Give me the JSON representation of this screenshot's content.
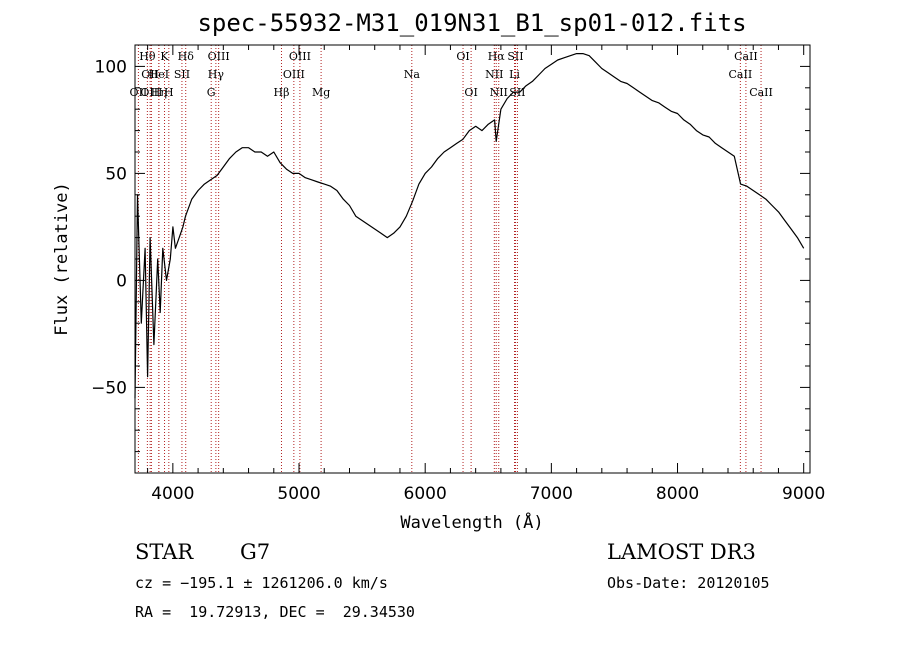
{
  "chart_data": {
    "type": "line",
    "title": "spec-55932-M31_019N31_B1_sp01-012.fits",
    "xlabel": "Wavelength (Å)",
    "ylabel": "Flux (relative)",
    "xlim": [
      3700,
      9050
    ],
    "ylim": [
      -90,
      110
    ],
    "xticks": [
      4000,
      5000,
      6000,
      7000,
      8000,
      9000
    ],
    "yticks": [
      -50,
      0,
      50,
      100
    ],
    "grid": false,
    "series": [
      {
        "name": "flux",
        "x": [
          3700,
          3720,
          3750,
          3780,
          3800,
          3820,
          3850,
          3880,
          3900,
          3920,
          3950,
          3980,
          4000,
          4020,
          4050,
          4080,
          4100,
          4150,
          4200,
          4250,
          4300,
          4350,
          4400,
          4450,
          4500,
          4550,
          4600,
          4650,
          4700,
          4750,
          4800,
          4850,
          4900,
          4950,
          5000,
          5050,
          5100,
          5150,
          5200,
          5250,
          5300,
          5350,
          5400,
          5450,
          5500,
          5550,
          5600,
          5650,
          5700,
          5750,
          5800,
          5850,
          5900,
          5950,
          6000,
          6050,
          6100,
          6150,
          6200,
          6250,
          6300,
          6350,
          6400,
          6450,
          6500,
          6550,
          6563,
          6600,
          6650,
          6700,
          6750,
          6800,
          6850,
          6900,
          6950,
          7000,
          7050,
          7100,
          7150,
          7200,
          7250,
          7300,
          7350,
          7400,
          7450,
          7500,
          7550,
          7600,
          7650,
          7700,
          7750,
          7800,
          7850,
          7900,
          7950,
          8000,
          8050,
          8100,
          8150,
          8200,
          8250,
          8300,
          8350,
          8400,
          8450,
          8500,
          8550,
          8600,
          8650,
          8700,
          8750,
          8800,
          8850,
          8900,
          8950,
          9000
        ],
        "y": [
          -55,
          40,
          -20,
          15,
          -45,
          20,
          -30,
          10,
          -15,
          15,
          0,
          10,
          25,
          15,
          20,
          25,
          30,
          38,
          42,
          45,
          47,
          49,
          53,
          57,
          60,
          62,
          62,
          60,
          60,
          58,
          60,
          55,
          52,
          50,
          50,
          48,
          47,
          46,
          45,
          44,
          42,
          38,
          35,
          30,
          28,
          26,
          24,
          22,
          20,
          22,
          25,
          30,
          37,
          45,
          50,
          53,
          57,
          60,
          62,
          64,
          66,
          70,
          72,
          70,
          73,
          75,
          65,
          80,
          85,
          88,
          88,
          91,
          93,
          96,
          99,
          101,
          103,
          104,
          105,
          106,
          106,
          105,
          102,
          99,
          97,
          95,
          93,
          92,
          90,
          88,
          86,
          84,
          83,
          81,
          79,
          78,
          75,
          73,
          70,
          68,
          67,
          64,
          62,
          60,
          58,
          45,
          44,
          42,
          40,
          38,
          35,
          32,
          28,
          24,
          20,
          15
        ]
      }
    ],
    "lines": [
      {
        "name": "OII",
        "wavelength": 3727,
        "row": 3
      },
      {
        "name": "Hθ",
        "wavelength": 3798,
        "row": 1
      },
      {
        "name": "OII",
        "wavelength": 3820,
        "row": 2
      },
      {
        "name": "OIII",
        "wavelength": 3830,
        "row": 3
      },
      {
        "name": "Hη",
        "wavelength": 3889,
        "row": 3
      },
      {
        "name": "K",
        "wavelength": 3934,
        "row": 1
      },
      {
        "name": "HeI",
        "wavelength": 3889,
        "row": 2
      },
      {
        "name": "H",
        "wavelength": 3968,
        "row": 3
      },
      {
        "name": "SII",
        "wavelength": 4072,
        "row": 2
      },
      {
        "name": "Hδ",
        "wavelength": 4102,
        "row": 1
      },
      {
        "name": "OIII",
        "wavelength": 4363,
        "row": 1
      },
      {
        "name": "Hγ",
        "wavelength": 4341,
        "row": 2
      },
      {
        "name": "G",
        "wavelength": 4304,
        "row": 3
      },
      {
        "name": "Hβ",
        "wavelength": 4861,
        "row": 3
      },
      {
        "name": "OIII",
        "wavelength": 5007,
        "row": 1
      },
      {
        "name": "OIII",
        "wavelength": 4959,
        "row": 2
      },
      {
        "name": "Mg",
        "wavelength": 5175,
        "row": 3
      },
      {
        "name": "Na",
        "wavelength": 5894,
        "row": 2
      },
      {
        "name": "OI",
        "wavelength": 6300,
        "row": 1
      },
      {
        "name": "OI",
        "wavelength": 6364,
        "row": 3
      },
      {
        "name": "Hα",
        "wavelength": 6563,
        "row": 1
      },
      {
        "name": "SII",
        "wavelength": 6716,
        "row": 1
      },
      {
        "name": "NII",
        "wavelength": 6548,
        "row": 2
      },
      {
        "name": "Li",
        "wavelength": 6708,
        "row": 2
      },
      {
        "name": "NII",
        "wavelength": 6583,
        "row": 3
      },
      {
        "name": "SII",
        "wavelength": 6731,
        "row": 3
      },
      {
        "name": "CaII",
        "wavelength": 8542,
        "row": 1
      },
      {
        "name": "CaII",
        "wavelength": 8498,
        "row": 2
      },
      {
        "name": "CaII",
        "wavelength": 8662,
        "row": 3
      }
    ]
  },
  "info": {
    "object_class": "STAR",
    "subclass": "G7",
    "survey": "LAMOST DR3",
    "redshift": "cz = −195.1 ± 1261206.0 km/s",
    "obs_date": "Obs-Date: 20120105",
    "coords": "RA =  19.72913, DEC =  29.34530"
  }
}
